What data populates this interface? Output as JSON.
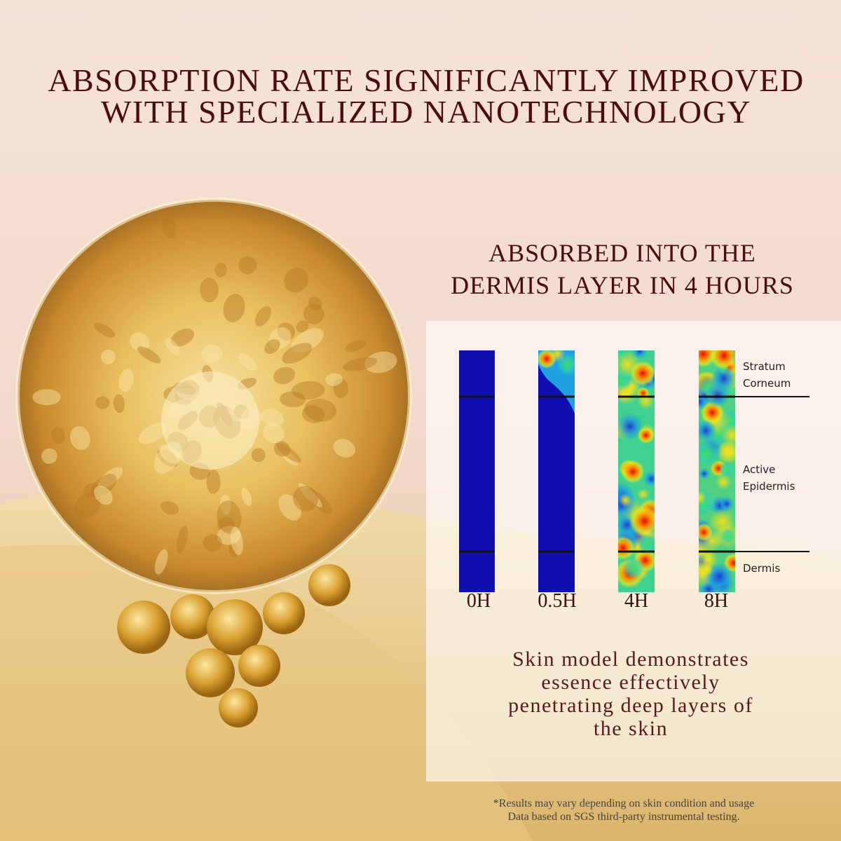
{
  "title": [
    "ABSORPTION RATE SIGNIFICANTLY IMPROVED",
    "WITH SPECIALIZED NANOTECHNOLOGY"
  ],
  "subtitle": [
    "ABSORBED INTO THE",
    "DERMIS LAYER IN 4 HOURS"
  ],
  "layers": [
    {
      "lines": [
        "Stratum",
        "Corneum"
      ]
    },
    {
      "lines": [
        "Active",
        "Epidermis"
      ]
    },
    {
      "lines": [
        "Dermis"
      ]
    }
  ],
  "timepoints": [
    "0H",
    "0.5H",
    "4H",
    "8H"
  ],
  "caption": [
    "Skin model demonstrates",
    "essence effectively",
    "penetrating deep layers of",
    "the skin"
  ],
  "footnote": [
    "*Results may vary depending on skin condition and usage",
    "Data based on SGS third-party instrumental testing."
  ]
}
